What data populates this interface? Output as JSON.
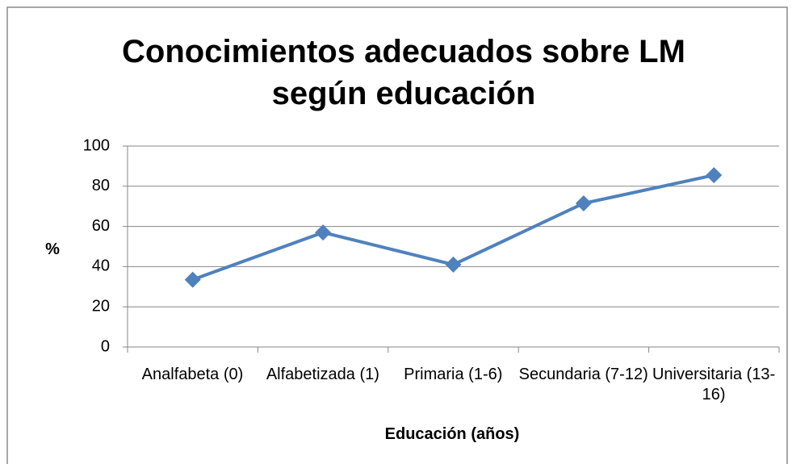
{
  "chart_data": {
    "type": "line",
    "title": "Conocimientos adecuados sobre LM según educación",
    "y_label": "%",
    "x_label": "Educación (años)",
    "categories": [
      "Analfabeta (0)",
      "Alfabetizada (1)",
      "Primaria (1-6)",
      "Secundaria (7-12)",
      "Universitaria (13-16)"
    ],
    "series": [
      {
        "color": "#4f81bd",
        "values": [
          33.5,
          57,
          41,
          71.5,
          85.5
        ]
      }
    ],
    "ylim": [
      0,
      100
    ],
    "yticks": [
      0,
      20,
      40,
      60,
      80,
      100
    ],
    "grid": true
  }
}
